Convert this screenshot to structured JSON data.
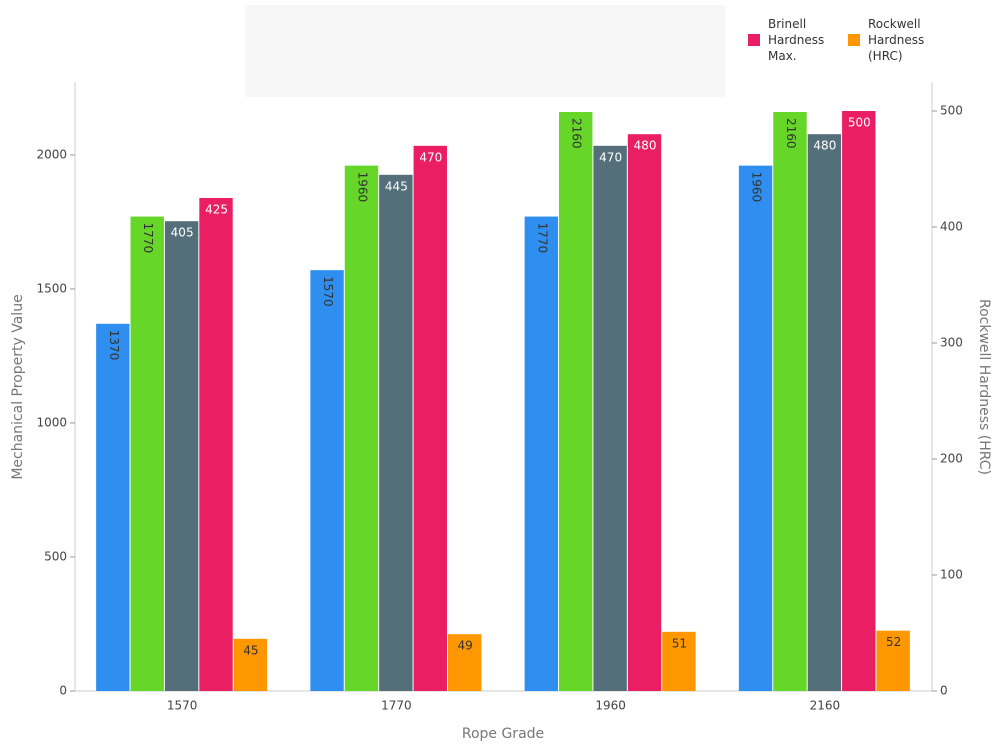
{
  "chart_data": {
    "type": "bar",
    "x_label": "Rope Grade",
    "y_label": "Mechanical Property Value",
    "y2_label": "Rockwell Hardness (HRC)",
    "categories": [
      "1570",
      "1770",
      "1960",
      "2160"
    ],
    "series": [
      {
        "color": "#2f8ff0",
        "values": [
          1370,
          1570,
          1770,
          1960
        ]
      },
      {
        "color": "#66d628",
        "values": [
          1770,
          1960,
          2160,
          2160
        ]
      },
      {
        "color": "#546e7a",
        "values": [
          405,
          445,
          470,
          480
        ],
        "axis": "y2"
      },
      {
        "name": "Brinell Hardness Max.",
        "color": "#e91e63",
        "values": [
          425,
          470,
          480,
          500
        ],
        "axis": "y2"
      },
      {
        "name": "Rockwell Hardness (HRC)",
        "color": "#ff9800",
        "values": [
          45,
          49,
          51,
          52
        ],
        "axis": "y2"
      }
    ],
    "ylim": [
      0,
      2272
    ],
    "yticks": [
      0,
      500,
      1000,
      1500,
      2000
    ],
    "y2lim": [
      0,
      525
    ],
    "y2ticks": [
      0,
      100,
      200,
      300,
      400,
      500
    ],
    "grid": false
  }
}
